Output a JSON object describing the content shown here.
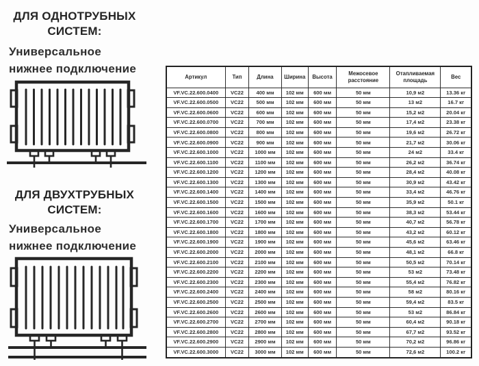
{
  "left_panel": {
    "section_one": {
      "title_line1": "ДЛЯ ОДНОТРУБНЫХ",
      "title_line2": "СИСТЕМ:",
      "subtitle_line1": "Универсальное",
      "subtitle_line2": "нижнее подключение"
    },
    "section_two": {
      "title_line1": "ДЛЯ ДВУХТРУБНЫХ",
      "title_line2": "СИСТЕМ:",
      "subtitle_line1": "Универсальное",
      "subtitle_line2": "нижнее подключение"
    },
    "icons": {
      "diagram_one": "single-pipe-radiator-diagram",
      "diagram_two": "double-pipe-radiator-diagram"
    }
  },
  "table": {
    "columns": [
      "Артикул",
      "Тип",
      "Длина",
      "Ширина",
      "Высота",
      "Межосевое расстояние",
      "Отапливаемая площадь",
      "Вес"
    ],
    "rows": [
      [
        "VF.VC.22.600.0400",
        "VC22",
        "400 мм",
        "102 мм",
        "600 мм",
        "50 мм",
        "10,9 м2",
        "13.36 кг"
      ],
      [
        "VF.VC.22.600.0500",
        "VC22",
        "500 мм",
        "102 мм",
        "600 мм",
        "50 мм",
        "13 м2",
        "16.7 кг"
      ],
      [
        "VF.VC.22.600.0600",
        "VC22",
        "600 мм",
        "102 мм",
        "600 мм",
        "50 мм",
        "15,2 м2",
        "20.04 кг"
      ],
      [
        "VF.VC.22.600.0700",
        "VC22",
        "700 мм",
        "102 мм",
        "600 мм",
        "50 мм",
        "17,4 м2",
        "23.38 кг"
      ],
      [
        "VF.VC.22.600.0800",
        "VC22",
        "800 мм",
        "102 мм",
        "600 мм",
        "50 мм",
        "19,6 м2",
        "26.72 кг"
      ],
      [
        "VF.VC.22.600.0900",
        "VC22",
        "900 мм",
        "102 мм",
        "600 мм",
        "50 мм",
        "21,7 м2",
        "30.06 кг"
      ],
      [
        "VF.VC.22.600.1000",
        "VC22",
        "1000 мм",
        "102 мм",
        "600 мм",
        "50 мм",
        "24 м2",
        "33.4 кг"
      ],
      [
        "VF.VC.22.600.1100",
        "VC22",
        "1100 мм",
        "102 мм",
        "600 мм",
        "50 мм",
        "26,2 м2",
        "36.74 кг"
      ],
      [
        "VF.VC.22.600.1200",
        "VC22",
        "1200 мм",
        "102 мм",
        "600 мм",
        "50 мм",
        "28,4 м2",
        "40.08 кг"
      ],
      [
        "VF.VC.22.600.1300",
        "VC22",
        "1300 мм",
        "102 мм",
        "600 мм",
        "50 мм",
        "30,9 м2",
        "43.42 кг"
      ],
      [
        "VF.VC.22.600.1400",
        "VC22",
        "1400 мм",
        "102 мм",
        "600 мм",
        "50 мм",
        "33,4 м2",
        "46.76 кг"
      ],
      [
        "VF.VC.22.600.1500",
        "VC22",
        "1500 мм",
        "102 мм",
        "600 мм",
        "50 мм",
        "35,9 м2",
        "50.1 кг"
      ],
      [
        "VF.VC.22.600.1600",
        "VC22",
        "1600 мм",
        "102 мм",
        "600 мм",
        "50 мм",
        "38,3 м2",
        "53.44 кг"
      ],
      [
        "VF.VC.22.600.1700",
        "VC22",
        "1700 мм",
        "102 мм",
        "600 мм",
        "50 мм",
        "40,7 м2",
        "56.78 кг"
      ],
      [
        "VF.VC.22.600.1800",
        "VC22",
        "1800 мм",
        "102 мм",
        "600 мм",
        "50 мм",
        "43,2 м2",
        "60.12 кг"
      ],
      [
        "VF.VC.22.600.1900",
        "VC22",
        "1900 мм",
        "102 мм",
        "600 мм",
        "50 мм",
        "45,6 м2",
        "63.46 кг"
      ],
      [
        "VF.VC.22.600.2000",
        "VC22",
        "2000 мм",
        "102 мм",
        "600 мм",
        "50 мм",
        "48,1 м2",
        "66.8 кг"
      ],
      [
        "VF.VC.22.600.2100",
        "VC22",
        "2100 мм",
        "102 мм",
        "600 мм",
        "50 мм",
        "50,5 м2",
        "70.14 кг"
      ],
      [
        "VF.VC.22.600.2200",
        "VC22",
        "2200 мм",
        "102 мм",
        "600 мм",
        "50 мм",
        "53 м2",
        "73.48 кг"
      ],
      [
        "VF.VC.22.600.2300",
        "VC22",
        "2300 мм",
        "102 мм",
        "600 мм",
        "50 мм",
        "55,4 м2",
        "76.82 кг"
      ],
      [
        "VF.VC.22.600.2400",
        "VC22",
        "2400 мм",
        "102 мм",
        "600 мм",
        "50 мм",
        "58 м2",
        "80.16 кг"
      ],
      [
        "VF.VC.22.600.2500",
        "VC22",
        "2500 мм",
        "102 мм",
        "600 мм",
        "50 мм",
        "59,4 м2",
        "83.5 кг"
      ],
      [
        "VF.VC.22.600.2600",
        "VC22",
        "2600 мм",
        "102 мм",
        "600 мм",
        "50 мм",
        "53 м2",
        "86.84 кг"
      ],
      [
        "VF.VC.22.600.2700",
        "VC22",
        "2700 мм",
        "102 мм",
        "600 мм",
        "50 мм",
        "60,4 м2",
        "90.18 кг"
      ],
      [
        "VF.VC.22.600.2800",
        "VC22",
        "2800 мм",
        "102 мм",
        "600 мм",
        "50 мм",
        "67,7 м2",
        "93.52 кг"
      ],
      [
        "VF.VC.22.600.2900",
        "VC22",
        "2900 мм",
        "102 мм",
        "600 мм",
        "50 мм",
        "70,2 м2",
        "96.86 кг"
      ],
      [
        "VF.VC.22.600.3000",
        "VC22",
        "3000 мм",
        "102 мм",
        "600 мм",
        "50 мм",
        "72,6 м2",
        "100.2 кг"
      ]
    ]
  },
  "colors": {
    "ink": "#2b2b2b",
    "background": "#fdfdfd"
  }
}
